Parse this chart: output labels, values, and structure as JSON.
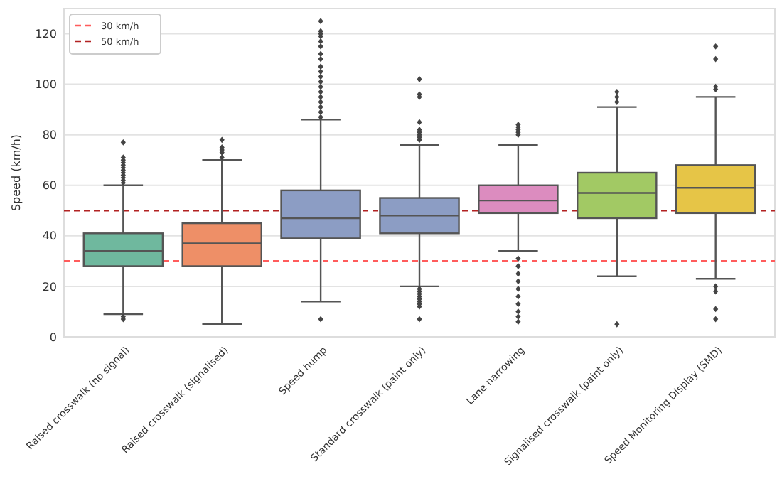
{
  "chart_data": {
    "type": "box",
    "ylabel": "Speed (km/h)",
    "categories": [
      "Raised crosswalk (no signal)",
      "Raised crosswalk (signalised)",
      "Speed hump",
      "Standard crosswalk (paint only)",
      "Lane narrowing",
      "Signalised crosswalk (paint only)",
      "Speed Monitoring Display (SMD)"
    ],
    "colors": [
      "#6fb89e",
      "#ee8f67",
      "#8c9dc4",
      "#8c9dc4",
      "#dc8cbf",
      "#a2c964",
      "#e6c547"
    ],
    "boxes": [
      {
        "low": 9,
        "q1": 28,
        "median": 34,
        "q3": 41,
        "high": 60,
        "outliers": [
          7,
          8,
          61,
          62,
          63,
          64,
          65,
          66,
          67,
          68,
          69,
          70,
          71,
          77
        ]
      },
      {
        "low": 5,
        "q1": 28,
        "median": 37,
        "q3": 45,
        "high": 70,
        "outliers": [
          71,
          73,
          74,
          75,
          78
        ]
      },
      {
        "low": 14,
        "q1": 39,
        "median": 47,
        "q3": 58,
        "high": 86,
        "outliers": [
          7,
          87,
          89,
          91,
          93,
          95,
          97,
          99,
          101,
          103,
          105,
          107,
          110,
          112,
          115,
          117,
          119,
          120,
          121,
          125
        ]
      },
      {
        "low": 20,
        "q1": 41,
        "median": 48,
        "q3": 55,
        "high": 76,
        "outliers": [
          7,
          12,
          13,
          14,
          15,
          16,
          17,
          18,
          19,
          78,
          79,
          80,
          81,
          82,
          85,
          95,
          96,
          102
        ]
      },
      {
        "low": 34,
        "q1": 49,
        "median": 54,
        "q3": 60,
        "high": 76,
        "outliers": [
          6,
          8,
          10,
          13,
          16,
          19,
          22,
          25,
          28,
          31,
          80,
          81,
          82,
          83,
          84
        ]
      },
      {
        "low": 24,
        "q1": 47,
        "median": 57,
        "q3": 65,
        "high": 91,
        "outliers": [
          5,
          93,
          95,
          97
        ]
      },
      {
        "low": 23,
        "q1": 49,
        "median": 59,
        "q3": 68,
        "high": 95,
        "outliers": [
          7,
          11,
          18,
          20,
          98,
          99,
          110,
          115
        ]
      }
    ],
    "ylim": [
      0,
      130
    ],
    "yticks": [
      0,
      20,
      40,
      60,
      80,
      100,
      120
    ],
    "grid": "y",
    "legend": "top left",
    "ref_lines": [
      {
        "axis": "y",
        "value": 30,
        "label": "30 km/h",
        "color": "#ff5c5c",
        "line_style": "dashed"
      },
      {
        "axis": "y",
        "value": 50,
        "label": "50 km/h",
        "color": "#b22222",
        "line_style": "dashed"
      }
    ]
  }
}
